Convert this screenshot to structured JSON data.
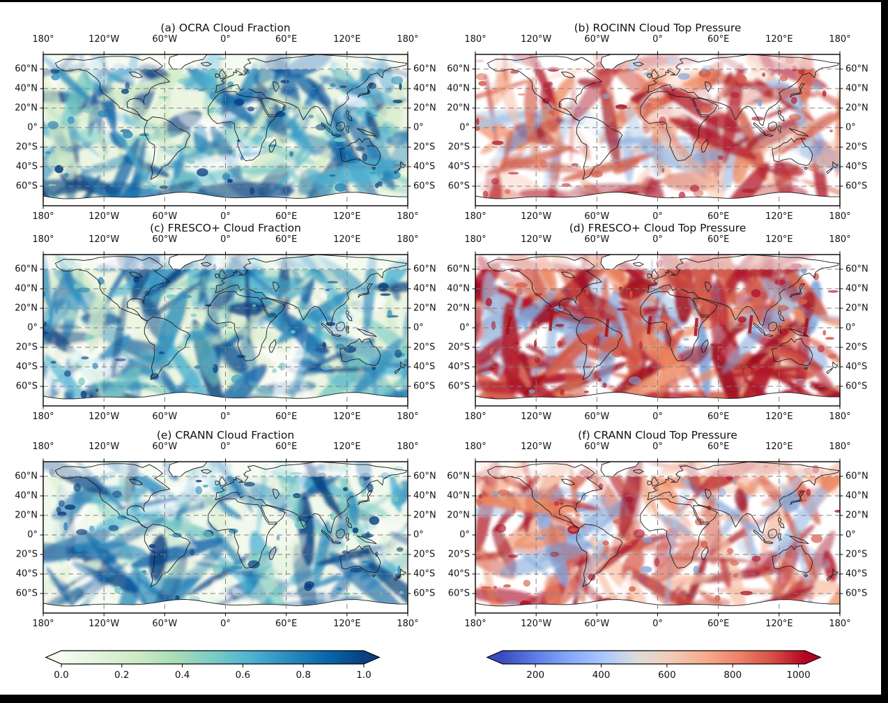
{
  "figure": {
    "frame_color": "#000000",
    "background": "#ffffff",
    "description": "Six-panel global map figure comparing cloud fraction and cloud top pressure retrievals"
  },
  "panels": [
    {
      "id": "a",
      "title": "(a) OCRA Cloud Fraction",
      "row": 0,
      "col": 0,
      "field": "cloud_fraction",
      "style": "dense",
      "seed": 11
    },
    {
      "id": "b",
      "title": "(b) ROCINN Cloud Top Pressure",
      "row": 0,
      "col": 1,
      "field": "cloud_top_pressure",
      "style": "moderate",
      "seed": 22
    },
    {
      "id": "c",
      "title": "(c) FRESCO+ Cloud Fraction",
      "row": 1,
      "col": 0,
      "field": "cloud_fraction",
      "style": "dense",
      "seed": 37
    },
    {
      "id": "d",
      "title": "(d) FRESCO+ Cloud Top Pressure",
      "row": 1,
      "col": 1,
      "field": "cloud_top_pressure",
      "style": "intense",
      "seed": 44
    },
    {
      "id": "e",
      "title": "(e) CRANN Cloud Fraction",
      "row": 2,
      "col": 0,
      "field": "cloud_fraction",
      "style": "smooth",
      "seed": 55
    },
    {
      "id": "f",
      "title": "(f) CRANN Cloud Top Pressure",
      "row": 2,
      "col": 1,
      "field": "cloud_top_pressure",
      "style": "moderate",
      "seed": 68
    }
  ],
  "axes": {
    "lon_tick_labels": [
      "180°",
      "120°W",
      "60°W",
      "0°",
      "60°E",
      "120°E",
      "180°"
    ],
    "lat_tick_labels": [
      "60°N",
      "40°N",
      "20°N",
      "0°",
      "20°S",
      "40°S",
      "60°S"
    ],
    "gridline_color": "#808080",
    "gridline_style": "dashed"
  },
  "colorbars": [
    {
      "id": "cloud_fraction",
      "side": "left",
      "extend": "both",
      "colormap": "GnBu",
      "vmin": 0,
      "vmax": 1,
      "tick_values": [
        0,
        0.2,
        0.4,
        0.6,
        0.8,
        1
      ],
      "tick_labels": [
        "0.0",
        "0.2",
        "0.4",
        "0.6",
        "0.8",
        "1.0"
      ],
      "stops": [
        "#f7fcf0",
        "#e0f3db",
        "#ccebc5",
        "#a8ddb5",
        "#7bccc4",
        "#4eb3d3",
        "#2b8cbe",
        "#0868ac",
        "#084081"
      ]
    },
    {
      "id": "cloud_top_pressure",
      "side": "right",
      "extend": "both",
      "colormap": "coolwarm",
      "vmin": 100,
      "vmax": 1020,
      "tick_values": [
        200,
        400,
        600,
        800,
        1000
      ],
      "tick_labels": [
        "200",
        "400",
        "600",
        "800",
        "1000"
      ],
      "stops": [
        "#3b4cc0",
        "#5e7de7",
        "#85a8fc",
        "#aac7fd",
        "#dddcdb",
        "#f2cbb7",
        "#f7ac8e",
        "#ee8468",
        "#d65244",
        "#b40426"
      ]
    }
  ],
  "chart_data": [
    {
      "type": "heatmap",
      "panel": "a",
      "title": "(a) OCRA Cloud Fraction",
      "variable": "cloud fraction",
      "projection": "equirectangular",
      "colormap": "GnBu",
      "vmin": 0.0,
      "vmax": 1.0,
      "colorbar_ticks": [
        0.0,
        0.2,
        0.4,
        0.6,
        0.8,
        1.0
      ],
      "lon_ticks": [
        "180°",
        "120°W",
        "60°W",
        "0°",
        "60°E",
        "120°E",
        "180°"
      ],
      "lat_ticks": [
        "60°N",
        "40°N",
        "20°N",
        "0°",
        "20°S",
        "40°S",
        "60°S"
      ],
      "extent": {
        "lon": [
          -180,
          180
        ],
        "lat": [
          -80,
          75
        ]
      },
      "grid": true,
      "pattern": "High cloud fraction (0.6-1.0, dark blue) streaks along mid-latitude storm tracks, ITCZ and the Southern Ocean; near-zero values (white/pale green) over subtropical highs, deserts and much of the land"
    },
    {
      "type": "heatmap",
      "panel": "b",
      "title": "(b) ROCINN Cloud Top Pressure",
      "variable": "cloud top pressure",
      "projection": "equirectangular",
      "colormap": "coolwarm",
      "vmin": 100,
      "vmax": 1020,
      "colorbar_ticks": [
        200,
        400,
        600,
        800,
        1000
      ],
      "lon_ticks": [
        "180°",
        "120°W",
        "60°W",
        "0°",
        "60°E",
        "120°E",
        "180°"
      ],
      "lat_ticks": [
        "60°N",
        "40°N",
        "20°N",
        "0°",
        "20°S",
        "40°S",
        "60°S"
      ],
      "extent": {
        "lon": [
          -180,
          180
        ],
        "lat": [
          -80,
          75
        ]
      },
      "grid": true,
      "pattern": "High pressures 700-1000 (red/orange) over most cloudy oceans; low pressures 200-500 (blue) in tropical and subtropical bands; white where clear"
    },
    {
      "type": "heatmap",
      "panel": "c",
      "title": "(c) FRESCO+ Cloud Fraction",
      "variable": "cloud fraction",
      "projection": "equirectangular",
      "colormap": "GnBu",
      "vmin": 0.0,
      "vmax": 1.0,
      "colorbar_ticks": [
        0.0,
        0.2,
        0.4,
        0.6,
        0.8,
        1.0
      ],
      "lon_ticks": [
        "180°",
        "120°W",
        "60°W",
        "0°",
        "60°E",
        "120°E",
        "180°"
      ],
      "lat_ticks": [
        "60°N",
        "40°N",
        "20°N",
        "0°",
        "20°S",
        "40°S",
        "60°S"
      ],
      "extent": {
        "lon": [
          -180,
          180
        ],
        "lat": [
          -80,
          75
        ]
      },
      "grid": true,
      "pattern": "Very similar to (a): dense dark-blue cloud bands over Southern Ocean and storm tracks, pale green low-fraction background over land and subtropics"
    },
    {
      "type": "heatmap",
      "panel": "d",
      "title": "(d) FRESCO+ Cloud Top Pressure",
      "variable": "cloud top pressure",
      "projection": "equirectangular",
      "colormap": "coolwarm",
      "vmin": 100,
      "vmax": 1020,
      "colorbar_ticks": [
        200,
        400,
        600,
        800,
        1000
      ],
      "lon_ticks": [
        "180°",
        "120°W",
        "60°W",
        "0°",
        "60°E",
        "120°E",
        "180°"
      ],
      "lat_ticks": [
        "60°N",
        "40°N",
        "20°N",
        "0°",
        "20°S",
        "40°S",
        "60°S"
      ],
      "extent": {
        "lon": [
          -180,
          180
        ],
        "lat": [
          -80,
          75
        ]
      },
      "grid": true,
      "pattern": "Most intense panel: widespread dark red (900-1000) especially over Southern Hemisphere oceans, with scattered light-blue patches and dark-red vertical streak artifacts near the equator"
    },
    {
      "type": "heatmap",
      "panel": "e",
      "title": "(e) CRANN Cloud Fraction",
      "variable": "cloud fraction",
      "projection": "equirectangular",
      "colormap": "GnBu",
      "vmin": 0.0,
      "vmax": 1.0,
      "colorbar_ticks": [
        0.0,
        0.2,
        0.4,
        0.6,
        0.8,
        1.0
      ],
      "lon_ticks": [
        "180°",
        "120°W",
        "60°W",
        "0°",
        "60°E",
        "120°E",
        "180°"
      ],
      "lat_ticks": [
        "60°N",
        "40°N",
        "20°N",
        "0°",
        "20°S",
        "40°S",
        "60°S"
      ],
      "extent": {
        "lon": [
          -180,
          180
        ],
        "lat": [
          -80,
          75
        ]
      },
      "grid": true,
      "pattern": "Smoothest cloud-fraction field: lighter pale-green background with well-defined dark-blue streaks along storm tracks and the Southern Ocean"
    },
    {
      "type": "heatmap",
      "panel": "f",
      "title": "(f) CRANN Cloud Top Pressure",
      "variable": "cloud top pressure",
      "projection": "equirectangular",
      "colormap": "coolwarm",
      "vmin": 100,
      "vmax": 1020,
      "colorbar_ticks": [
        200,
        400,
        600,
        800,
        1000
      ],
      "lon_ticks": [
        "180°",
        "120°W",
        "60°W",
        "0°",
        "60°E",
        "120°E",
        "180°"
      ],
      "lat_ticks": [
        "60°N",
        "40°N",
        "20°N",
        "0°",
        "20°S",
        "40°S",
        "60°S"
      ],
      "extent": {
        "lon": [
          -180,
          180
        ],
        "lat": [
          -80,
          75
        ]
      },
      "grid": true,
      "pattern": "Smooth red field similar to (b) with fewer extremes; light-blue low-pressure patches over the Indian Ocean and maritime continent, white over deserts and central Asia"
    }
  ]
}
